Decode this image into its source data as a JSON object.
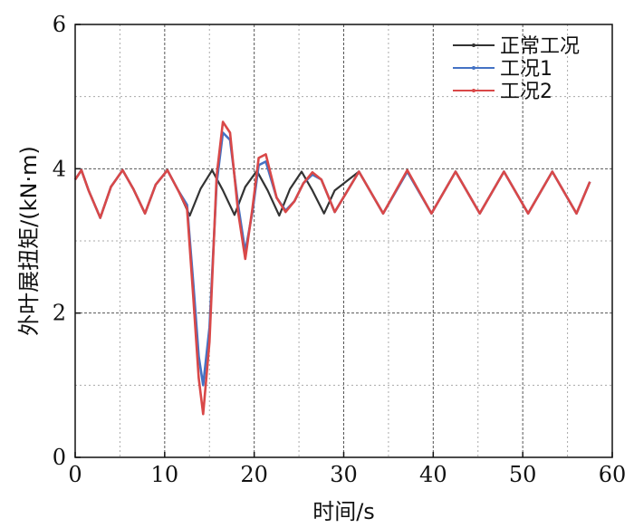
{
  "chart_data": {
    "type": "line",
    "xlabel": "时间/s",
    "ylabel": "外叶展扭矩/(kN·m)",
    "xlim": [
      0,
      60
    ],
    "ylim": [
      0,
      6
    ],
    "x_ticks": [
      "0",
      "10",
      "20",
      "30",
      "40",
      "50",
      "60"
    ],
    "y_ticks": [
      "0",
      "2",
      "4",
      "6"
    ],
    "grid": true,
    "legend_position": "top-right",
    "series": [
      {
        "name": "正常工况",
        "color": "#333333",
        "x": [
          0,
          0.7,
          1.5,
          2.8,
          4.0,
          5.3,
          6.5,
          7.8,
          9.0,
          10.3,
          11.5,
          12.8,
          14.0,
          15.3,
          16.5,
          17.8,
          19.0,
          20.3,
          21.5,
          22.8,
          24.0,
          25.3,
          26.5,
          27.8,
          29.0,
          31.7,
          34.4,
          37.1,
          39.8,
          42.5,
          45.2,
          47.9,
          50.6,
          53.3,
          56.0,
          57.5
        ],
        "y": [
          3.85,
          3.98,
          3.7,
          3.32,
          3.75,
          3.98,
          3.72,
          3.38,
          3.78,
          3.98,
          3.7,
          3.35,
          3.72,
          3.98,
          3.7,
          3.36,
          3.75,
          3.97,
          3.7,
          3.35,
          3.72,
          3.96,
          3.7,
          3.38,
          3.7,
          3.96,
          3.38,
          3.96,
          3.38,
          3.96,
          3.38,
          3.96,
          3.38,
          3.96,
          3.38,
          3.82
        ]
      },
      {
        "name": "工况1",
        "color": "#4472c4",
        "x": [
          0,
          0.7,
          1.5,
          2.8,
          4.0,
          5.3,
          6.5,
          7.8,
          9.0,
          10.3,
          11.5,
          12.5,
          13.2,
          13.8,
          14.3,
          15.0,
          15.8,
          16.5,
          17.3,
          18.2,
          19.0,
          19.8,
          20.5,
          21.3,
          22.5,
          23.5,
          24.5,
          25.5,
          26.5,
          27.5,
          29.0,
          31.7,
          34.4,
          37.1,
          39.8,
          42.5,
          45.2,
          47.9,
          50.6,
          53.3,
          56.0,
          57.5
        ],
        "y": [
          3.85,
          3.98,
          3.7,
          3.32,
          3.75,
          3.98,
          3.72,
          3.38,
          3.78,
          3.98,
          3.7,
          3.5,
          2.4,
          1.4,
          1.0,
          1.8,
          3.8,
          4.5,
          4.4,
          3.5,
          2.85,
          3.4,
          4.05,
          4.1,
          3.6,
          3.42,
          3.55,
          3.8,
          3.92,
          3.85,
          3.4,
          3.96,
          3.38,
          3.96,
          3.38,
          3.96,
          3.38,
          3.96,
          3.38,
          3.96,
          3.38,
          3.82
        ]
      },
      {
        "name": "工况2",
        "color": "#d94848",
        "x": [
          0,
          0.7,
          1.5,
          2.8,
          4.0,
          5.3,
          6.5,
          7.8,
          9.0,
          10.3,
          11.5,
          12.5,
          13.2,
          13.8,
          14.3,
          15.0,
          15.8,
          16.5,
          17.3,
          18.2,
          19.0,
          19.8,
          20.5,
          21.3,
          22.5,
          23.5,
          24.5,
          25.5,
          26.5,
          27.5,
          29.0,
          31.7,
          34.4,
          37.1,
          39.8,
          42.5,
          45.2,
          47.9,
          50.6,
          53.3,
          56.0,
          57.5
        ],
        "y": [
          3.85,
          3.98,
          3.7,
          3.32,
          3.75,
          3.98,
          3.72,
          3.38,
          3.78,
          3.98,
          3.7,
          3.45,
          2.2,
          1.1,
          0.6,
          1.6,
          3.9,
          4.65,
          4.5,
          3.4,
          2.75,
          3.45,
          4.15,
          4.2,
          3.6,
          3.4,
          3.55,
          3.8,
          3.95,
          3.85,
          3.4,
          3.96,
          3.38,
          3.98,
          3.38,
          3.96,
          3.38,
          3.96,
          3.38,
          3.96,
          3.38,
          3.82
        ]
      }
    ]
  }
}
